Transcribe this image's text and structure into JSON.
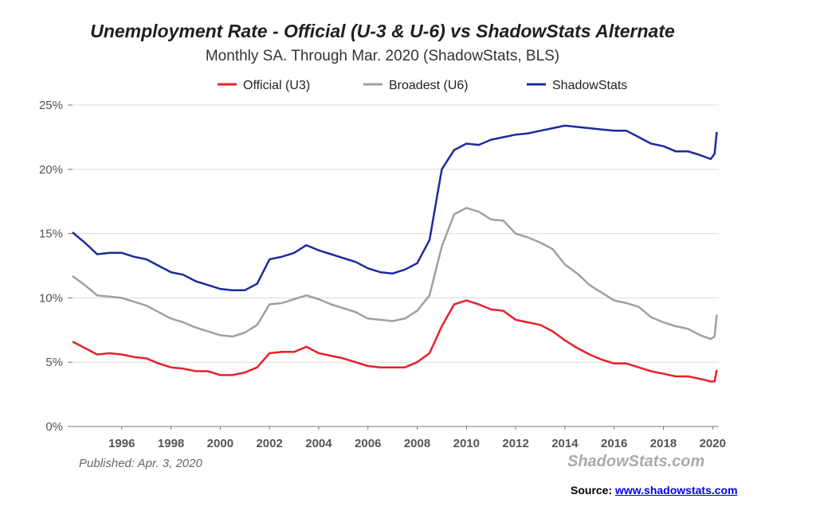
{
  "chart_data": {
    "type": "line",
    "title": "Unemployment Rate - Official (U-3 & U-6) vs ShadowStats Alternate",
    "subtitle": "Monthly SA. Through Mar. 2020  (ShadowStats, BLS)",
    "xlabel": "",
    "ylabel": "",
    "xlim": [
      1994,
      2020.25
    ],
    "ylim": [
      0,
      25
    ],
    "x_ticks": [
      "1996",
      "1998",
      "2000",
      "2002",
      "2004",
      "2006",
      "2008",
      "2010",
      "2012",
      "2014",
      "2016",
      "2018",
      "2020"
    ],
    "y_ticks": [
      "0%",
      "5%",
      "10%",
      "15%",
      "20%",
      "25%"
    ],
    "grid": "horizontal",
    "legend_position": "top-center",
    "series": [
      {
        "name": "Official (U3)",
        "color": "#e8202a",
        "points": [
          [
            1994.0,
            6.6
          ],
          [
            1994.5,
            6.1
          ],
          [
            1995.0,
            5.6
          ],
          [
            1995.5,
            5.7
          ],
          [
            1996.0,
            5.6
          ],
          [
            1996.5,
            5.4
          ],
          [
            1997.0,
            5.3
          ],
          [
            1997.5,
            4.9
          ],
          [
            1998.0,
            4.6
          ],
          [
            1998.5,
            4.5
          ],
          [
            1999.0,
            4.3
          ],
          [
            1999.5,
            4.3
          ],
          [
            2000.0,
            4.0
          ],
          [
            2000.5,
            4.0
          ],
          [
            2001.0,
            4.2
          ],
          [
            2001.5,
            4.6
          ],
          [
            2002.0,
            5.7
          ],
          [
            2002.5,
            5.8
          ],
          [
            2003.0,
            5.8
          ],
          [
            2003.5,
            6.2
          ],
          [
            2004.0,
            5.7
          ],
          [
            2004.5,
            5.5
          ],
          [
            2005.0,
            5.3
          ],
          [
            2005.5,
            5.0
          ],
          [
            2006.0,
            4.7
          ],
          [
            2006.5,
            4.6
          ],
          [
            2007.0,
            4.6
          ],
          [
            2007.5,
            4.6
          ],
          [
            2008.0,
            5.0
          ],
          [
            2008.5,
            5.7
          ],
          [
            2009.0,
            7.8
          ],
          [
            2009.5,
            9.5
          ],
          [
            2010.0,
            9.8
          ],
          [
            2010.5,
            9.5
          ],
          [
            2011.0,
            9.1
          ],
          [
            2011.5,
            9.0
          ],
          [
            2012.0,
            8.3
          ],
          [
            2012.5,
            8.1
          ],
          [
            2013.0,
            7.9
          ],
          [
            2013.5,
            7.4
          ],
          [
            2014.0,
            6.7
          ],
          [
            2014.5,
            6.1
          ],
          [
            2015.0,
            5.6
          ],
          [
            2015.5,
            5.2
          ],
          [
            2016.0,
            4.9
          ],
          [
            2016.5,
            4.9
          ],
          [
            2017.0,
            4.6
          ],
          [
            2017.5,
            4.3
          ],
          [
            2018.0,
            4.1
          ],
          [
            2018.5,
            3.9
          ],
          [
            2019.0,
            3.9
          ],
          [
            2019.5,
            3.7
          ],
          [
            2019.92,
            3.5
          ],
          [
            2020.0,
            3.5
          ],
          [
            2020.08,
            3.5
          ],
          [
            2020.17,
            4.4
          ]
        ]
      },
      {
        "name": "Broadest (U6)",
        "color": "#a0a0a0",
        "points": [
          [
            1994.0,
            11.7
          ],
          [
            1994.5,
            11.0
          ],
          [
            1995.0,
            10.2
          ],
          [
            1995.5,
            10.1
          ],
          [
            1996.0,
            10.0
          ],
          [
            1996.5,
            9.7
          ],
          [
            1997.0,
            9.4
          ],
          [
            1997.5,
            8.9
          ],
          [
            1998.0,
            8.4
          ],
          [
            1998.5,
            8.1
          ],
          [
            1999.0,
            7.7
          ],
          [
            1999.5,
            7.4
          ],
          [
            2000.0,
            7.1
          ],
          [
            2000.5,
            7.0
          ],
          [
            2001.0,
            7.3
          ],
          [
            2001.5,
            7.9
          ],
          [
            2002.0,
            9.5
          ],
          [
            2002.5,
            9.6
          ],
          [
            2003.0,
            9.9
          ],
          [
            2003.5,
            10.2
          ],
          [
            2004.0,
            9.9
          ],
          [
            2004.5,
            9.5
          ],
          [
            2005.0,
            9.2
          ],
          [
            2005.5,
            8.9
          ],
          [
            2006.0,
            8.4
          ],
          [
            2006.5,
            8.3
          ],
          [
            2007.0,
            8.2
          ],
          [
            2007.5,
            8.4
          ],
          [
            2008.0,
            9.0
          ],
          [
            2008.5,
            10.2
          ],
          [
            2009.0,
            14.0
          ],
          [
            2009.5,
            16.5
          ],
          [
            2010.0,
            17.0
          ],
          [
            2010.5,
            16.7
          ],
          [
            2011.0,
            16.1
          ],
          [
            2011.5,
            16.0
          ],
          [
            2012.0,
            15.0
          ],
          [
            2012.5,
            14.7
          ],
          [
            2013.0,
            14.3
          ],
          [
            2013.5,
            13.8
          ],
          [
            2014.0,
            12.6
          ],
          [
            2014.5,
            11.9
          ],
          [
            2015.0,
            11.0
          ],
          [
            2015.5,
            10.4
          ],
          [
            2016.0,
            9.8
          ],
          [
            2016.5,
            9.6
          ],
          [
            2017.0,
            9.3
          ],
          [
            2017.5,
            8.5
          ],
          [
            2018.0,
            8.1
          ],
          [
            2018.5,
            7.8
          ],
          [
            2019.0,
            7.6
          ],
          [
            2019.5,
            7.1
          ],
          [
            2019.92,
            6.8
          ],
          [
            2020.0,
            6.9
          ],
          [
            2020.08,
            7.0
          ],
          [
            2020.17,
            8.7
          ]
        ]
      },
      {
        "name": "ShadowStats",
        "color": "#1c2a9c",
        "points": [
          [
            1994.0,
            15.1
          ],
          [
            1994.5,
            14.3
          ],
          [
            1995.0,
            13.4
          ],
          [
            1995.5,
            13.5
          ],
          [
            1996.0,
            13.5
          ],
          [
            1996.5,
            13.2
          ],
          [
            1997.0,
            13.0
          ],
          [
            1997.5,
            12.5
          ],
          [
            1998.0,
            12.0
          ],
          [
            1998.5,
            11.8
          ],
          [
            1999.0,
            11.3
          ],
          [
            1999.5,
            11.0
          ],
          [
            2000.0,
            10.7
          ],
          [
            2000.5,
            10.6
          ],
          [
            2001.0,
            10.6
          ],
          [
            2001.5,
            11.1
          ],
          [
            2002.0,
            13.0
          ],
          [
            2002.5,
            13.2
          ],
          [
            2003.0,
            13.5
          ],
          [
            2003.5,
            14.1
          ],
          [
            2004.0,
            13.7
          ],
          [
            2004.5,
            13.4
          ],
          [
            2005.0,
            13.1
          ],
          [
            2005.5,
            12.8
          ],
          [
            2006.0,
            12.3
          ],
          [
            2006.5,
            12.0
          ],
          [
            2007.0,
            11.9
          ],
          [
            2007.5,
            12.2
          ],
          [
            2008.0,
            12.7
          ],
          [
            2008.5,
            14.5
          ],
          [
            2009.0,
            20.0
          ],
          [
            2009.5,
            21.5
          ],
          [
            2010.0,
            22.0
          ],
          [
            2010.5,
            21.9
          ],
          [
            2011.0,
            22.3
          ],
          [
            2011.5,
            22.5
          ],
          [
            2012.0,
            22.7
          ],
          [
            2012.5,
            22.8
          ],
          [
            2013.0,
            23.0
          ],
          [
            2013.5,
            23.2
          ],
          [
            2014.0,
            23.4
          ],
          [
            2014.5,
            23.3
          ],
          [
            2015.0,
            23.2
          ],
          [
            2015.5,
            23.1
          ],
          [
            2016.0,
            23.0
          ],
          [
            2016.5,
            23.0
          ],
          [
            2017.0,
            22.5
          ],
          [
            2017.5,
            22.0
          ],
          [
            2018.0,
            21.8
          ],
          [
            2018.5,
            21.4
          ],
          [
            2019.0,
            21.4
          ],
          [
            2019.5,
            21.1
          ],
          [
            2019.92,
            20.8
          ],
          [
            2020.0,
            21.0
          ],
          [
            2020.08,
            21.2
          ],
          [
            2020.17,
            22.9
          ]
        ]
      }
    ],
    "annotations": {
      "published": "Published: Apr. 3, 2020",
      "watermark": "ShadowStats.com"
    }
  },
  "source": {
    "label": "Source: ",
    "link_text": "www.shadowstats.com"
  }
}
